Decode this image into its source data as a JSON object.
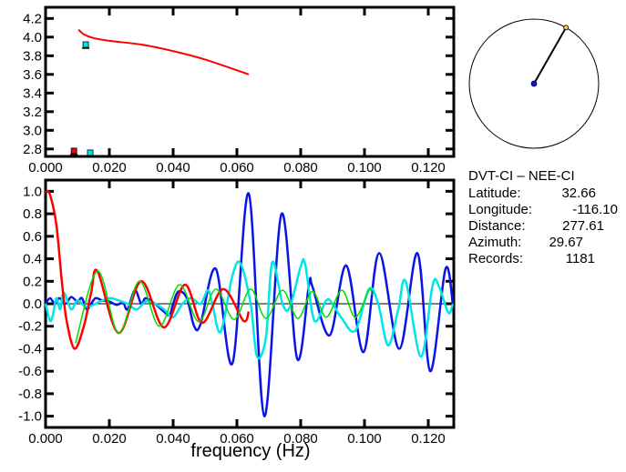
{
  "colors": {
    "red": "#ff0000",
    "blue": "#0a14e6",
    "cyan": "#00e6e6",
    "green": "#00dd00",
    "axis": "#000000"
  },
  "info": {
    "title": "DVT-CI  –  NEE-CI",
    "rows": [
      {
        "label": "Latitude:",
        "value": "32.66"
      },
      {
        "label": "Longitude:",
        "value": "-116.10"
      },
      {
        "label": "Distance:",
        "value": "277.61"
      },
      {
        "label": "Azimuth:",
        "value": "29.67"
      },
      {
        "label": "Records:",
        "value": "1181"
      }
    ]
  },
  "chart_data": [
    {
      "type": "scatter",
      "title": "",
      "xlabel": "",
      "ylabel": "",
      "xlim": [
        0,
        0.128
      ],
      "ylim": [
        2.72,
        4.32
      ],
      "xticks": [
        "0.000",
        "0.020",
        "0.040",
        "0.060",
        "0.080",
        "0.100",
        "0.120"
      ],
      "yticks": [
        "2.8",
        "3.0",
        "3.2",
        "3.4",
        "3.6",
        "3.8",
        "4.0",
        "4.2"
      ],
      "series": [
        {
          "name": "dispersion-curve",
          "kind": "line",
          "color": "#ff0000",
          "points": [
            [
              0.0103,
              4.08
            ],
            [
              0.012,
              4.03
            ],
            [
              0.015,
              3.99
            ],
            [
              0.02,
              3.96
            ],
            [
              0.03,
              3.92
            ],
            [
              0.04,
              3.85
            ],
            [
              0.05,
              3.76
            ],
            [
              0.0637,
              3.6
            ]
          ]
        },
        {
          "name": "marker-cyan-upper",
          "kind": "square",
          "color": "#00e6e6",
          "points": [
            [
              0.0126,
              3.92
            ]
          ]
        },
        {
          "name": "marker-red",
          "kind": "square",
          "color": "#ff0000",
          "points": [
            [
              0.0089,
              2.78
            ]
          ]
        },
        {
          "name": "marker-cyan-lower",
          "kind": "square",
          "color": "#00e6e6",
          "points": [
            [
              0.014,
              2.76
            ]
          ]
        }
      ]
    },
    {
      "type": "line",
      "title": "",
      "xlabel": "frequency (Hz)",
      "ylabel": "",
      "xlim": [
        0,
        0.128
      ],
      "ylim": [
        -1.1,
        1.1
      ],
      "xticks": [
        "0.000",
        "0.020",
        "0.040",
        "0.060",
        "0.080",
        "0.100",
        "0.120"
      ],
      "yticks": [
        "-1.0",
        "-0.8",
        "-0.6",
        "-0.4",
        "-0.2",
        "0.0",
        "0.2",
        "0.4",
        "0.6",
        "0.8",
        "1.0"
      ],
      "series": [
        {
          "name": "blue",
          "color": "#0a14e6",
          "points": [
            [
              0,
              0
            ],
            [
              0.0014,
              0.05
            ],
            [
              0.0029,
              0
            ],
            [
              0.0043,
              0.05
            ],
            [
              0.0063,
              0
            ],
            [
              0.008,
              0.06
            ],
            [
              0.01,
              0.02
            ],
            [
              0.0114,
              0.05
            ],
            [
              0.0129,
              -0.05
            ],
            [
              0.0143,
              0
            ],
            [
              0.0157,
              0.05
            ],
            [
              0.0177,
              0.03
            ],
            [
              0.02,
              0.02
            ],
            [
              0.0223,
              -0.01
            ],
            [
              0.0243,
              0.01
            ],
            [
              0.0257,
              -0.05
            ],
            [
              0.028,
              0.12
            ],
            [
              0.03,
              0
            ],
            [
              0.0314,
              0.05
            ],
            [
              0.0343,
              0
            ],
            [
              0.0371,
              -0.07
            ],
            [
              0.0389,
              -0.1
            ],
            [
              0.04,
              0
            ],
            [
              0.0417,
              0.11
            ],
            [
              0.0443,
              0.05
            ],
            [
              0.0466,
              -0.2
            ],
            [
              0.0486,
              -0.18
            ],
            [
              0.0534,
              0.31
            ],
            [
              0.0586,
              -0.53
            ],
            [
              0.0637,
              0.98
            ],
            [
              0.0686,
              -1.0
            ],
            [
              0.074,
              0.8
            ],
            [
              0.0789,
              -0.49
            ],
            [
              0.0826,
              0.17
            ],
            [
              0.0837,
              0.15
            ],
            [
              0.0891,
              -0.28
            ],
            [
              0.0943,
              0.34
            ],
            [
              0.0997,
              -0.43
            ],
            [
              0.1046,
              0.45
            ],
            [
              0.1109,
              -0.4
            ],
            [
              0.1166,
              0.45
            ],
            [
              0.1206,
              -0.6
            ],
            [
              0.1254,
              0.31
            ],
            [
              0.1277,
              0
            ]
          ]
        },
        {
          "name": "cyan",
          "color": "#00e6e6",
          "points": [
            [
              0,
              0
            ],
            [
              0.0014,
              -0.15
            ],
            [
              0.0023,
              -0.1
            ],
            [
              0.0034,
              0.05
            ],
            [
              0.0046,
              -0.05
            ],
            [
              0.0057,
              0.1
            ],
            [
              0.008,
              -0.05
            ],
            [
              0.01,
              0.03
            ],
            [
              0.0129,
              -0.03
            ],
            [
              0.0171,
              0.02
            ],
            [
              0.02,
              0.05
            ],
            [
              0.0229,
              0.03
            ],
            [
              0.0257,
              0
            ],
            [
              0.0286,
              -0.05
            ],
            [
              0.0314,
              0.02
            ],
            [
              0.0343,
              0
            ],
            [
              0.0371,
              -0.05
            ],
            [
              0.04,
              -0.12
            ],
            [
              0.0429,
              0
            ],
            [
              0.0457,
              0.05
            ],
            [
              0.0486,
              0
            ],
            [
              0.0509,
              0.12
            ],
            [
              0.0523,
              0
            ],
            [
              0.0549,
              -0.25
            ],
            [
              0.0586,
              0.25
            ],
            [
              0.0611,
              0.36
            ],
            [
              0.0643,
              0
            ],
            [
              0.0663,
              -0.47
            ],
            [
              0.0691,
              -0.3
            ],
            [
              0.0711,
              0.37
            ],
            [
              0.0743,
              0
            ],
            [
              0.0766,
              -0.03
            ],
            [
              0.08,
              0.33
            ],
            [
              0.0814,
              0.35
            ],
            [
              0.0843,
              -0.15
            ],
            [
              0.088,
              0.03
            ],
            [
              0.09,
              0
            ],
            [
              0.0929,
              -0.13
            ],
            [
              0.0971,
              -0.24
            ],
            [
              0.1014,
              0.13
            ],
            [
              0.1043,
              0
            ],
            [
              0.1074,
              -0.37
            ],
            [
              0.1106,
              -0.05
            ],
            [
              0.1129,
              0.2
            ],
            [
              0.1177,
              -0.47
            ],
            [
              0.1214,
              0.17
            ],
            [
              0.1234,
              0.15
            ],
            [
              0.1263,
              -0.08
            ],
            [
              0.1277,
              0
            ]
          ]
        },
        {
          "name": "red",
          "color": "#ff0000",
          "points": [
            [
              0,
              1
            ],
            [
              0.0014,
              0.97
            ],
            [
              0.0034,
              0.7
            ],
            [
              0.0051,
              0.2
            ],
            [
              0.0066,
              -0.15
            ],
            [
              0.0091,
              -0.4
            ],
            [
              0.012,
              -0.2
            ],
            [
              0.0143,
              0.1
            ],
            [
              0.0163,
              0.29
            ],
            [
              0.0229,
              -0.26
            ],
            [
              0.03,
              0.2
            ],
            [
              0.0371,
              -0.21
            ],
            [
              0.0437,
              0.17
            ],
            [
              0.0491,
              -0.17
            ],
            [
              0.0557,
              0.13
            ],
            [
              0.062,
              -0.15
            ],
            [
              0.0637,
              -0.07
            ]
          ]
        },
        {
          "name": "green",
          "color": "#00dd00",
          "points": [
            [
              0.0094,
              -0.35
            ],
            [
              0.0163,
              0.29
            ],
            [
              0.0229,
              -0.26
            ],
            [
              0.0294,
              0.2
            ],
            [
              0.0357,
              -0.2
            ],
            [
              0.042,
              0.17
            ],
            [
              0.048,
              -0.16
            ],
            [
              0.0534,
              0.13
            ],
            [
              0.0591,
              -0.14
            ],
            [
              0.0643,
              0.13
            ],
            [
              0.0691,
              -0.13
            ],
            [
              0.0743,
              0.12
            ],
            [
              0.0791,
              -0.13
            ],
            [
              0.0837,
              0.11
            ],
            [
              0.088,
              -0.12
            ],
            [
              0.0929,
              0.12
            ],
            [
              0.0971,
              -0.12
            ],
            [
              0.1014,
              0.12
            ],
            [
              0.1023,
              0.08
            ]
          ]
        }
      ]
    },
    {
      "type": "scatter",
      "title": "azimuth-dial",
      "azimuth_deg": 29.67
    }
  ]
}
